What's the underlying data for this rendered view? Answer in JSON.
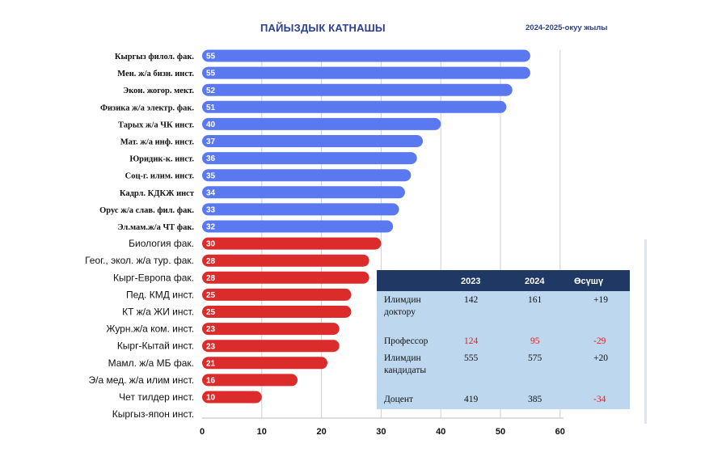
{
  "header": {
    "title": "ПАЙЫЗДЫК КАТНАШЫ",
    "subtitle": "2024-2025-окуу жылы"
  },
  "chart_data": {
    "type": "bar",
    "orientation": "horizontal",
    "title": "ПАЙЫЗДЫК КАТНАШЫ",
    "subtitle": "2024-2025-окуу жылы",
    "xlim": [
      0,
      60
    ],
    "xticks": [
      0,
      10,
      20,
      30,
      40,
      50,
      60
    ],
    "grid": true,
    "categories": [
      "Кыргыз филол. фак.",
      "Мен. ж/а бизн. инст.",
      "Экон. жогор. мект.",
      "Физика ж/а электр. фак.",
      "Тарых ж/а ЧК инст.",
      "Мат. ж/а инф. инст.",
      "Юридик-к. инст.",
      "Соц-г. илим. инст.",
      "Кадрл. КДКЖ инст",
      "Орус ж/а слав. фил. фак.",
      "Эл.мам.ж/а ЧТ фак.",
      "Биология фак.",
      "Геог., экол. ж/а тур. фак.",
      "Кырг-Европа фак.",
      "Пед. КМД инст.",
      "КТ ж/а ЖИ инст.",
      "Журн.ж/а ком. инст.",
      "Кырг-Кытай инст.",
      "Мамл. ж/а МБ фак.",
      "Э/а мед. ж/а илим инст.",
      "Чет тилдер инст.",
      "Кыргыз-япон инст."
    ],
    "values": [
      55,
      55,
      52,
      51,
      40,
      37,
      36,
      35,
      34,
      33,
      32,
      30,
      28,
      28,
      25,
      25,
      23,
      23,
      21,
      16,
      10,
      null
    ],
    "data_labels": [
      "55",
      "55",
      "52",
      "51",
      "40",
      "37",
      "36",
      "35",
      "34",
      "33",
      "32",
      "30",
      "28",
      "28",
      "25",
      "25",
      "23",
      "23",
      "21",
      "16",
      "10",
      ""
    ],
    "colors": {
      "upper_group": "#5a78f0",
      "lower_group": "#dc2b2b"
    },
    "upper_group_count": 11
  },
  "table": {
    "headers": [
      "",
      "2023",
      "2024",
      "Өсүшү"
    ],
    "rows": [
      {
        "label_line1": "Илимдин",
        "label_line2": "доктору",
        "y2023": "142",
        "y2024": "161",
        "growth": "+19",
        "negative": false
      },
      {
        "label_line1": "Профессор",
        "label_line2": "",
        "y2023": "124",
        "y2024": "95",
        "growth": "-29",
        "negative": true
      },
      {
        "label_line1": "Илимдин",
        "label_line2": "кандидаты",
        "y2023": "555",
        "y2024": "575",
        "growth": "+20",
        "negative": false
      },
      {
        "label_line1": "Доцент",
        "label_line2": "",
        "y2023": "419",
        "y2024": "385",
        "growth": "-34",
        "negative": false,
        "growth_negative": true
      }
    ],
    "colors": {
      "header_bg": "#1f3864",
      "body_bg": "#bdd7ee",
      "negative": "#e02020"
    }
  }
}
